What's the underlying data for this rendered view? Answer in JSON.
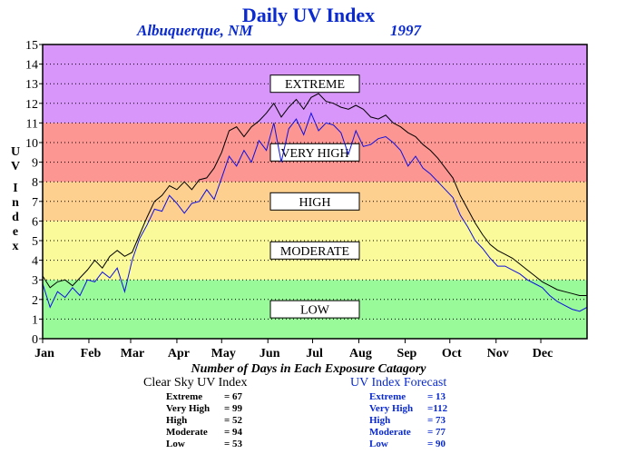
{
  "header": {
    "title": "Daily UV Index",
    "location": "Albuquerque, NM",
    "year": "1997"
  },
  "chart_data": {
    "type": "line",
    "title": "Daily UV Index",
    "ylabel": "UV Index",
    "xlabel": "",
    "ylim": [
      0,
      15
    ],
    "yticks": [
      0,
      1,
      2,
      3,
      4,
      5,
      6,
      7,
      8,
      9,
      10,
      11,
      12,
      13,
      14,
      15
    ],
    "grid": true,
    "xlim": [
      1,
      366
    ],
    "xticks": [
      {
        "label": "Jan",
        "day": 1
      },
      {
        "label": "Feb",
        "day": 32
      },
      {
        "label": "Mar",
        "day": 60
      },
      {
        "label": "Apr",
        "day": 91
      },
      {
        "label": "May",
        "day": 121
      },
      {
        "label": "Jun",
        "day": 152
      },
      {
        "label": "Jul",
        "day": 182
      },
      {
        "label": "Aug",
        "day": 213
      },
      {
        "label": "Sep",
        "day": 244
      },
      {
        "label": "Oct",
        "day": 274
      },
      {
        "label": "Nov",
        "day": 305
      },
      {
        "label": "Dec",
        "day": 335
      }
    ],
    "bands": [
      {
        "label": "LOW",
        "from": 0,
        "to": 3,
        "color": "#98fa98"
      },
      {
        "label": "MODERATE",
        "from": 3,
        "to": 6,
        "color": "#fafa9b"
      },
      {
        "label": "HIGH",
        "from": 6,
        "to": 8,
        "color": "#fed08f"
      },
      {
        "label": "VERY HIGH",
        "from": 8,
        "to": 11,
        "color": "#fb9692"
      },
      {
        "label": "EXTREME",
        "from": 11,
        "to": 15,
        "color": "#d996fa"
      }
    ],
    "series": [
      {
        "color": "#000000",
        "points": [
          [
            1,
            3.2
          ],
          [
            6,
            2.6
          ],
          [
            11,
            2.9
          ],
          [
            16,
            3.0
          ],
          [
            21,
            2.7
          ],
          [
            26,
            3.1
          ],
          [
            31,
            3.5
          ],
          [
            36,
            4.0
          ],
          [
            41,
            3.6
          ],
          [
            46,
            4.2
          ],
          [
            51,
            4.5
          ],
          [
            56,
            4.2
          ],
          [
            61,
            4.4
          ],
          [
            66,
            5.3
          ],
          [
            71,
            6.2
          ],
          [
            76,
            7.0
          ],
          [
            81,
            7.3
          ],
          [
            86,
            7.8
          ],
          [
            91,
            7.6
          ],
          [
            96,
            8.0
          ],
          [
            101,
            7.6
          ],
          [
            106,
            8.1
          ],
          [
            111,
            8.2
          ],
          [
            116,
            8.7
          ],
          [
            121,
            9.5
          ],
          [
            126,
            10.6
          ],
          [
            131,
            10.8
          ],
          [
            136,
            10.3
          ],
          [
            141,
            10.8
          ],
          [
            146,
            11.1
          ],
          [
            151,
            11.5
          ],
          [
            156,
            12.0
          ],
          [
            161,
            11.3
          ],
          [
            166,
            11.8
          ],
          [
            171,
            12.2
          ],
          [
            176,
            11.7
          ],
          [
            181,
            12.3
          ],
          [
            186,
            12.5
          ],
          [
            191,
            12.1
          ],
          [
            196,
            12.0
          ],
          [
            201,
            11.8
          ],
          [
            206,
            11.7
          ],
          [
            211,
            11.9
          ],
          [
            216,
            11.7
          ],
          [
            221,
            11.3
          ],
          [
            226,
            11.2
          ],
          [
            231,
            11.4
          ],
          [
            236,
            11.0
          ],
          [
            241,
            10.8
          ],
          [
            246,
            10.5
          ],
          [
            251,
            10.3
          ],
          [
            256,
            9.9
          ],
          [
            261,
            9.6
          ],
          [
            266,
            9.2
          ],
          [
            271,
            8.7
          ],
          [
            276,
            8.2
          ],
          [
            281,
            7.3
          ],
          [
            286,
            6.6
          ],
          [
            291,
            5.9
          ],
          [
            296,
            5.3
          ],
          [
            301,
            4.8
          ],
          [
            306,
            4.5
          ],
          [
            311,
            4.3
          ],
          [
            316,
            4.1
          ],
          [
            321,
            3.8
          ],
          [
            326,
            3.5
          ],
          [
            331,
            3.2
          ],
          [
            336,
            2.9
          ],
          [
            341,
            2.7
          ],
          [
            346,
            2.5
          ],
          [
            351,
            2.4
          ],
          [
            356,
            2.3
          ],
          [
            361,
            2.2
          ],
          [
            366,
            2.2
          ]
        ]
      },
      {
        "color": "#1010e0",
        "points": [
          [
            1,
            2.8
          ],
          [
            6,
            1.6
          ],
          [
            11,
            2.4
          ],
          [
            16,
            2.1
          ],
          [
            21,
            2.6
          ],
          [
            26,
            2.2
          ],
          [
            31,
            3.0
          ],
          [
            36,
            2.9
          ],
          [
            41,
            3.4
          ],
          [
            46,
            3.1
          ],
          [
            51,
            3.6
          ],
          [
            56,
            2.4
          ],
          [
            61,
            4.0
          ],
          [
            66,
            5.1
          ],
          [
            71,
            5.8
          ],
          [
            76,
            6.6
          ],
          [
            81,
            6.5
          ],
          [
            86,
            7.3
          ],
          [
            91,
            6.9
          ],
          [
            96,
            6.4
          ],
          [
            101,
            6.9
          ],
          [
            106,
            7.0
          ],
          [
            111,
            7.6
          ],
          [
            116,
            7.1
          ],
          [
            121,
            8.2
          ],
          [
            126,
            9.3
          ],
          [
            131,
            8.8
          ],
          [
            136,
            9.6
          ],
          [
            141,
            9.0
          ],
          [
            146,
            10.1
          ],
          [
            151,
            9.6
          ],
          [
            156,
            11.0
          ],
          [
            161,
            9.0
          ],
          [
            166,
            10.7
          ],
          [
            171,
            11.2
          ],
          [
            176,
            10.4
          ],
          [
            181,
            11.5
          ],
          [
            186,
            10.6
          ],
          [
            191,
            11.0
          ],
          [
            196,
            10.9
          ],
          [
            201,
            10.5
          ],
          [
            206,
            9.4
          ],
          [
            211,
            10.6
          ],
          [
            216,
            9.8
          ],
          [
            221,
            9.9
          ],
          [
            226,
            10.2
          ],
          [
            231,
            10.3
          ],
          [
            236,
            10.0
          ],
          [
            241,
            9.6
          ],
          [
            246,
            8.8
          ],
          [
            251,
            9.3
          ],
          [
            256,
            8.7
          ],
          [
            261,
            8.4
          ],
          [
            266,
            8.0
          ],
          [
            271,
            7.6
          ],
          [
            276,
            7.2
          ],
          [
            281,
            6.3
          ],
          [
            286,
            5.7
          ],
          [
            291,
            5.0
          ],
          [
            296,
            4.6
          ],
          [
            301,
            4.1
          ],
          [
            306,
            3.7
          ],
          [
            311,
            3.7
          ],
          [
            316,
            3.5
          ],
          [
            321,
            3.3
          ],
          [
            326,
            3.0
          ],
          [
            331,
            2.8
          ],
          [
            336,
            2.6
          ],
          [
            341,
            2.2
          ],
          [
            346,
            1.9
          ],
          [
            351,
            1.7
          ],
          [
            356,
            1.5
          ],
          [
            361,
            1.4
          ],
          [
            366,
            1.6
          ]
        ]
      }
    ]
  },
  "footnote": "Number of Days in Each Exposure Catagory",
  "stats": {
    "clear_sky": {
      "title": "Clear Sky UV Index",
      "rows": [
        {
          "label": "Extreme",
          "value": "= 67"
        },
        {
          "label": "Very High",
          "value": "= 99"
        },
        {
          "label": "High",
          "value": "= 52"
        },
        {
          "label": "Moderate",
          "value": "= 94"
        },
        {
          "label": "Low",
          "value": "= 53"
        }
      ]
    },
    "forecast": {
      "title": "UV Index Forecast",
      "rows": [
        {
          "label": "Extreme",
          "value": "= 13"
        },
        {
          "label": "Very High",
          "value": "=112"
        },
        {
          "label": "High",
          "value": "= 73"
        },
        {
          "label": "Moderate",
          "value": "= 77"
        },
        {
          "label": "Low",
          "value": "= 90"
        }
      ]
    }
  }
}
